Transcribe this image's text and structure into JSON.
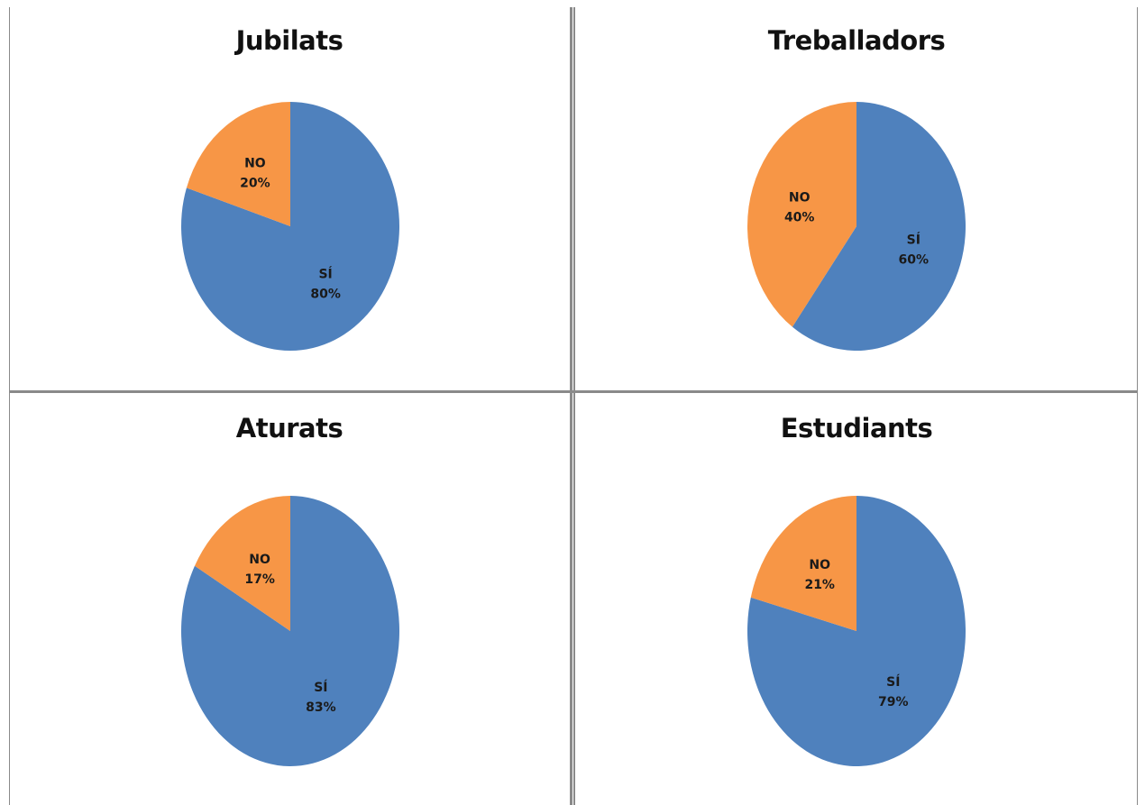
{
  "colors": {
    "si": "#4f81bd",
    "no": "#f79646",
    "divider": "#8a8a8a"
  },
  "chart_data": [
    {
      "type": "pie",
      "title": "Jubilats",
      "slices": [
        {
          "label": "SÍ",
          "value": 80,
          "pct_label": "80%"
        },
        {
          "label": "NO",
          "value": 20,
          "pct_label": "20%"
        }
      ]
    },
    {
      "type": "pie",
      "title": "Treballadors",
      "slices": [
        {
          "label": "SÍ",
          "value": 60,
          "pct_label": "60%"
        },
        {
          "label": "NO",
          "value": 40,
          "pct_label": "40%"
        }
      ]
    },
    {
      "type": "pie",
      "title": "Aturats",
      "slices": [
        {
          "label": "SÍ",
          "value": 83,
          "pct_label": "83%"
        },
        {
          "label": "NO",
          "value": 17,
          "pct_label": "17%"
        }
      ]
    },
    {
      "type": "pie",
      "title": "Estudiants",
      "slices": [
        {
          "label": "SÍ",
          "value": 79,
          "pct_label": "79%"
        },
        {
          "label": "NO",
          "value": 21,
          "pct_label": "21%"
        }
      ]
    }
  ]
}
